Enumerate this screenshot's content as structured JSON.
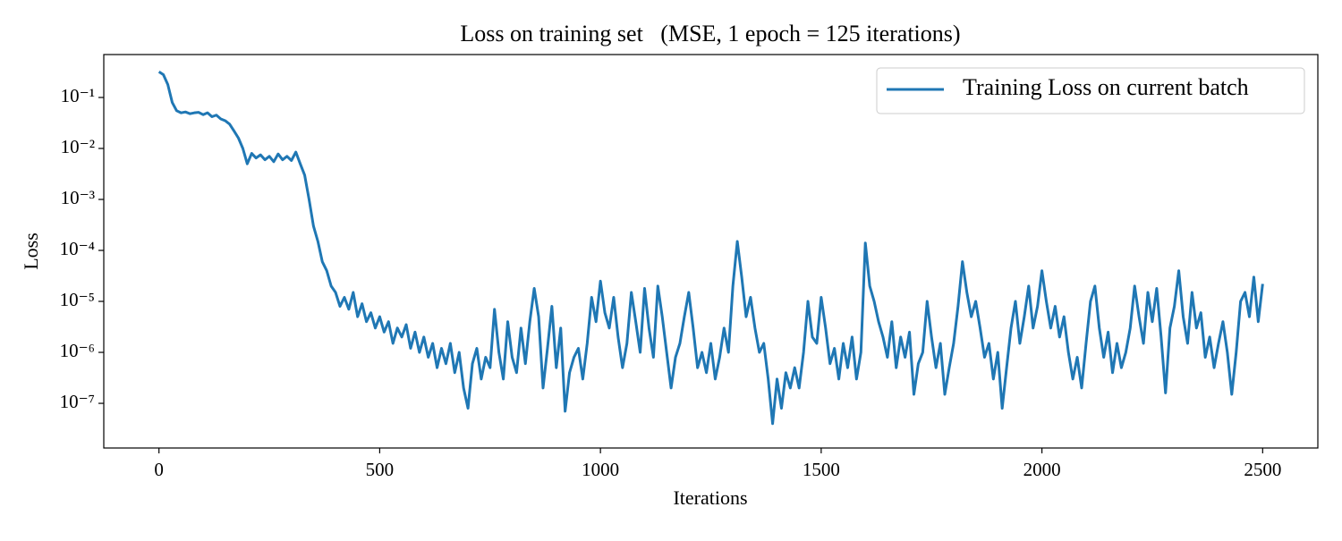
{
  "chart_data": {
    "type": "line",
    "title": "Loss on training set   (MSE, 1 epoch = 125 iterations)",
    "xlabel": "Iterations",
    "ylabel": "Loss",
    "yscale": "log",
    "legend": "upper right",
    "xlim": [
      -125,
      2625
    ],
    "ylim": [
      1.33e-08,
      0.695
    ],
    "xticks": [
      0,
      500,
      1000,
      1500,
      2000,
      2500
    ],
    "yticks": [
      {
        "value": 1e-07,
        "label": "10⁻⁷"
      },
      {
        "value": 1e-06,
        "label": "10⁻⁶"
      },
      {
        "value": 1e-05,
        "label": "10⁻⁵"
      },
      {
        "value": 0.0001,
        "label": "10⁻⁴"
      },
      {
        "value": 0.001,
        "label": "10⁻³"
      },
      {
        "value": 0.01,
        "label": "10⁻²"
      },
      {
        "value": 0.1,
        "label": "10⁻¹"
      }
    ],
    "x": [
      0,
      10,
      20,
      30,
      40,
      50,
      60,
      70,
      80,
      90,
      100,
      110,
      120,
      130,
      140,
      150,
      160,
      170,
      180,
      190,
      200,
      210,
      220,
      230,
      240,
      250,
      260,
      270,
      280,
      290,
      300,
      310,
      320,
      330,
      340,
      350,
      360,
      370,
      380,
      390,
      400,
      410,
      420,
      430,
      440,
      450,
      460,
      470,
      480,
      490,
      500,
      510,
      520,
      530,
      540,
      550,
      560,
      570,
      580,
      590,
      600,
      610,
      620,
      630,
      640,
      650,
      660,
      670,
      680,
      690,
      700,
      710,
      720,
      730,
      740,
      750,
      760,
      770,
      780,
      790,
      800,
      810,
      820,
      830,
      840,
      850,
      860,
      870,
      880,
      890,
      900,
      910,
      920,
      930,
      940,
      950,
      960,
      970,
      980,
      990,
      1000,
      1010,
      1020,
      1030,
      1040,
      1050,
      1060,
      1070,
      1080,
      1090,
      1100,
      1110,
      1120,
      1130,
      1140,
      1150,
      1160,
      1170,
      1180,
      1190,
      1200,
      1210,
      1220,
      1230,
      1240,
      1250,
      1260,
      1270,
      1280,
      1290,
      1300,
      1310,
      1320,
      1330,
      1340,
      1350,
      1360,
      1370,
      1380,
      1390,
      1400,
      1410,
      1420,
      1430,
      1440,
      1450,
      1460,
      1470,
      1480,
      1490,
      1500,
      1510,
      1520,
      1530,
      1540,
      1550,
      1560,
      1570,
      1580,
      1590,
      1600,
      1610,
      1620,
      1630,
      1640,
      1650,
      1660,
      1670,
      1680,
      1690,
      1700,
      1710,
      1720,
      1730,
      1740,
      1750,
      1760,
      1770,
      1780,
      1790,
      1800,
      1810,
      1820,
      1830,
      1840,
      1850,
      1860,
      1870,
      1880,
      1890,
      1900,
      1910,
      1920,
      1930,
      1940,
      1950,
      1960,
      1970,
      1980,
      1990,
      2000,
      2010,
      2020,
      2030,
      2040,
      2050,
      2060,
      2070,
      2080,
      2090,
      2100,
      2110,
      2120,
      2130,
      2140,
      2150,
      2160,
      2170,
      2180,
      2190,
      2200,
      2210,
      2220,
      2230,
      2240,
      2250,
      2260,
      2270,
      2280,
      2290,
      2300,
      2310,
      2320,
      2330,
      2340,
      2350,
      2360,
      2370,
      2380,
      2390,
      2400,
      2410,
      2420,
      2430,
      2440,
      2450,
      2460,
      2470,
      2480,
      2490,
      2500
    ],
    "series": [
      {
        "name": "Training Loss on current batch",
        "color": "#1f77b4",
        "values": [
          0.32,
          0.28,
          0.18,
          0.08,
          0.055,
          0.05,
          0.052,
          0.048,
          0.05,
          0.051,
          0.046,
          0.05,
          0.042,
          0.045,
          0.038,
          0.035,
          0.03,
          0.022,
          0.016,
          0.01,
          0.005,
          0.008,
          0.0065,
          0.0075,
          0.006,
          0.007,
          0.0055,
          0.0078,
          0.006,
          0.007,
          0.0058,
          0.0085,
          0.005,
          0.003,
          0.001,
          0.0003,
          0.00015,
          6e-05,
          4e-05,
          2e-05,
          1.5e-05,
          8e-06,
          1.2e-05,
          7e-06,
          1.5e-05,
          5e-06,
          9e-06,
          4e-06,
          6e-06,
          3e-06,
          5e-06,
          2.5e-06,
          4e-06,
          1.5e-06,
          3e-06,
          2e-06,
          3.5e-06,
          1.2e-06,
          2.5e-06,
          1e-06,
          2e-06,
          8e-07,
          1.5e-06,
          5e-07,
          1.2e-06,
          6e-07,
          1.5e-06,
          4e-07,
          1e-06,
          2e-07,
          8e-08,
          6e-07,
          1.2e-06,
          3e-07,
          8e-07,
          5e-07,
          7e-06,
          1e-06,
          3e-07,
          4e-06,
          8e-07,
          4e-07,
          3e-06,
          6e-07,
          4e-06,
          1.8e-05,
          5e-06,
          2e-07,
          1.2e-06,
          8e-06,
          5e-07,
          3e-06,
          7e-08,
          4e-07,
          8e-07,
          1.2e-06,
          3e-07,
          1.5e-06,
          1.2e-05,
          4e-06,
          2.5e-05,
          6e-06,
          3e-06,
          1.2e-05,
          2e-06,
          5e-07,
          1.5e-06,
          1.5e-05,
          4e-06,
          1e-06,
          1.8e-05,
          3e-06,
          8e-07,
          2e-05,
          5e-06,
          1e-06,
          2e-07,
          8e-07,
          1.5e-06,
          5e-06,
          1.5e-05,
          3e-06,
          5e-07,
          1e-06,
          4e-07,
          1.5e-06,
          3e-07,
          8e-07,
          3e-06,
          1e-06,
          2e-05,
          0.00015,
          3e-05,
          5e-06,
          1.2e-05,
          3e-06,
          1e-06,
          1.5e-06,
          3e-07,
          4e-08,
          3e-07,
          8e-08,
          4e-07,
          2e-07,
          5e-07,
          2e-07,
          1e-06,
          1e-05,
          2e-06,
          1.5e-06,
          1.2e-05,
          3e-06,
          6e-07,
          1.2e-06,
          3e-07,
          1.5e-06,
          5e-07,
          2e-06,
          3e-07,
          1e-06,
          0.00014,
          2e-05,
          1e-05,
          4e-06,
          2e-06,
          8e-07,
          4e-06,
          5e-07,
          2e-06,
          8e-07,
          2.5e-06,
          1.5e-07,
          6e-07,
          1e-06,
          1e-05,
          2e-06,
          5e-07,
          1.5e-06,
          1.5e-07,
          5e-07,
          1.5e-06,
          8e-06,
          6e-05,
          1.5e-05,
          5e-06,
          1e-05,
          3e-06,
          8e-07,
          1.5e-06,
          3e-07,
          1e-06,
          8e-08,
          5e-07,
          3e-06,
          1e-05,
          1.5e-06,
          5e-06,
          2e-05,
          3e-06,
          8e-06,
          4e-05,
          1e-05,
          3e-06,
          8e-06,
          2e-06,
          5e-06,
          1e-06,
          3e-07,
          8e-07,
          2e-07,
          1.5e-06,
          1e-05,
          2e-05,
          3e-06,
          8e-07,
          2.5e-06,
          4e-07,
          1.5e-06,
          5e-07,
          1e-06,
          3e-06,
          2e-05,
          5e-06,
          1.5e-06,
          1.5e-05,
          4e-06,
          1.8e-05,
          2e-06,
          1.6e-07,
          3e-06,
          8e-06,
          4e-05,
          5e-06,
          1.5e-06,
          1.5e-05,
          3e-06,
          6e-06,
          8e-07,
          2e-06,
          5e-07,
          1.5e-06,
          4e-06,
          1e-06,
          1.5e-07,
          1e-06,
          1e-05,
          1.5e-05,
          5e-06,
          3e-05,
          4e-06,
          2.2e-05
        ]
      }
    ]
  }
}
